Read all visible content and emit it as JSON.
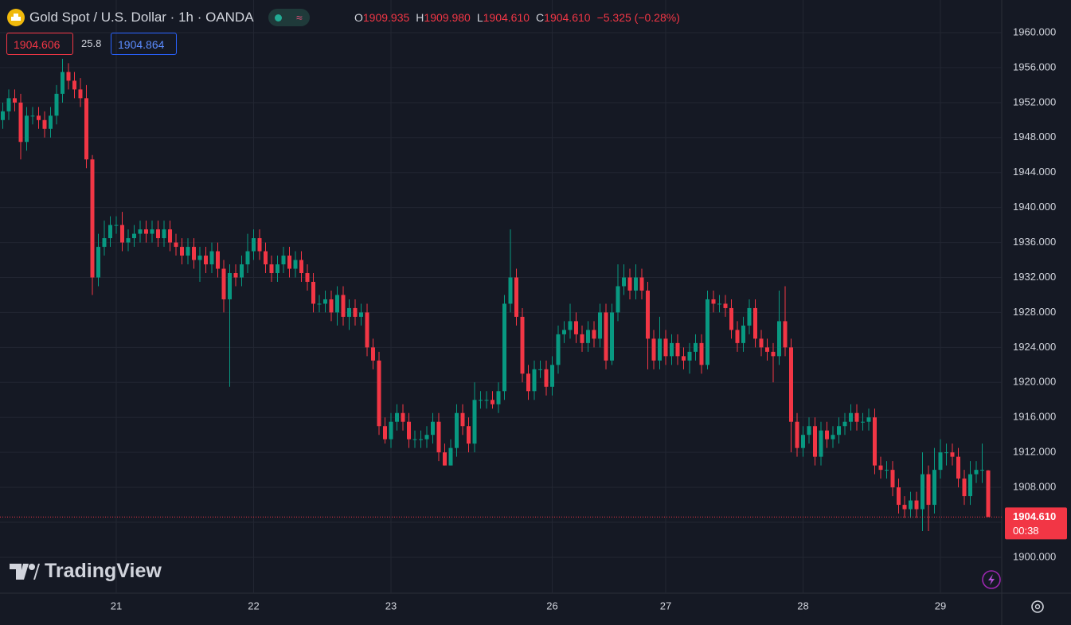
{
  "header": {
    "symbol": "Gold Spot / U.S. Dollar · 1h · OANDA",
    "ohlc": [
      {
        "label": "O",
        "value": "1909.935"
      },
      {
        "label": "H",
        "value": "1909.980"
      },
      {
        "label": "L",
        "value": "1904.610"
      },
      {
        "label": "C",
        "value": "1904.610"
      }
    ],
    "change": "−5.325 (−0.28%)",
    "sell": "1904.606",
    "spread": "25.8",
    "buy": "1904.864",
    "watermark": "TradingView"
  },
  "chart_data": {
    "type": "candlestick",
    "up_color": "#089981",
    "down_color": "#f23645",
    "grid": true,
    "price_tag": {
      "label": "1904.610",
      "countdown": "00:38"
    },
    "ylim": [
      1895.9,
      1963.73
    ],
    "yticks": [
      {
        "value": 1900,
        "label": "1900.000"
      },
      {
        "value": 1904,
        "label": "1904.000"
      },
      {
        "value": 1908,
        "label": "1908.000"
      },
      {
        "value": 1912,
        "label": "1912.000"
      },
      {
        "value": 1916,
        "label": "1916.000"
      },
      {
        "value": 1920,
        "label": "1920.000"
      },
      {
        "value": 1924,
        "label": "1924.000"
      },
      {
        "value": 1928,
        "label": "1928.000"
      },
      {
        "value": 1932,
        "label": "1932.000"
      },
      {
        "value": 1936,
        "label": "1936.000"
      },
      {
        "value": 1940,
        "label": "1940.000"
      },
      {
        "value": 1944,
        "label": "1944.000"
      },
      {
        "value": 1948,
        "label": "1948.000"
      },
      {
        "value": 1952,
        "label": "1952.000"
      },
      {
        "value": 1956,
        "label": "1956.000"
      },
      {
        "value": 1960,
        "label": "1960.000"
      }
    ],
    "categories": [
      null,
      null,
      null,
      null,
      null,
      null,
      null,
      null,
      null,
      null,
      null,
      null,
      null,
      null,
      null,
      null,
      null,
      null,
      null,
      "21",
      null,
      null,
      null,
      null,
      null,
      null,
      null,
      null,
      null,
      null,
      null,
      null,
      null,
      null,
      null,
      null,
      null,
      null,
      null,
      null,
      null,
      null,
      "22",
      null,
      null,
      null,
      null,
      null,
      null,
      null,
      null,
      null,
      null,
      null,
      null,
      null,
      null,
      null,
      null,
      null,
      null,
      null,
      null,
      null,
      null,
      "23",
      null,
      null,
      null,
      null,
      null,
      null,
      null,
      null,
      null,
      null,
      null,
      null,
      null,
      null,
      null,
      null,
      null,
      null,
      null,
      null,
      null,
      null,
      null,
      null,
      null,
      null,
      "26",
      null,
      null,
      null,
      null,
      null,
      null,
      null,
      null,
      null,
      null,
      null,
      null,
      null,
      null,
      null,
      null,
      null,
      null,
      "27",
      null,
      null,
      null,
      null,
      null,
      null,
      null,
      null,
      null,
      null,
      null,
      null,
      null,
      null,
      null,
      null,
      null,
      null,
      null,
      null,
      null,
      null,
      "28",
      null,
      null,
      null,
      null,
      null,
      null,
      null,
      null,
      null,
      null,
      null,
      null,
      null,
      null,
      null,
      null,
      null,
      null,
      null,
      null,
      null,
      null,
      "29",
      null,
      null,
      null,
      null,
      null,
      null,
      null,
      null
    ],
    "open": [
      1950,
      1951,
      1952.5,
      1952,
      1947.5,
      1950.5,
      1950.5,
      1950,
      1949,
      1950.5,
      1953,
      1955.5,
      1954.5,
      1953.5,
      1952.5,
      1945.5,
      1932,
      1935.5,
      1936.5,
      1938,
      1938,
      1936,
      1936.5,
      1937,
      1937.5,
      1937,
      1937.5,
      1936.5,
      1937.5,
      1936,
      1935.5,
      1934.5,
      1935.5,
      1934,
      1934.5,
      1933.5,
      1935,
      1933,
      1929.5,
      1932.5,
      1932,
      1933.5,
      1935,
      1936.5,
      1935,
      1933.5,
      1932.5,
      1933.5,
      1934.5,
      1933,
      1934,
      1932.5,
      1931.5,
      1929,
      1929,
      1929.5,
      1928,
      1930,
      1927.5,
      1928.5,
      1927.5,
      1928,
      1924,
      1922.5,
      1915,
      1913.5,
      1915.5,
      1916.5,
      1915.5,
      1913.5,
      1913.5,
      1913.5,
      1914,
      1915.5,
      1912,
      1910.5,
      1912.5,
      1916.5,
      1915,
      1913,
      1918,
      1918,
      1918,
      1917.5,
      1919,
      1929,
      1932,
      1927.5,
      1921,
      1919,
      1921.5,
      1921.5,
      1919.5,
      1922,
      1925.5,
      1926,
      1927,
      1925.5,
      1924.5,
      1926,
      1925,
      1928,
      1922.5,
      1928,
      1931,
      1932,
      1930.5,
      1932,
      1930.5,
      1925,
      1922.5,
      1925,
      1923,
      1924.5,
      1923,
      1922.5,
      1923.5,
      1924.5,
      1922,
      1929.5,
      1929,
      1929,
      1928.5,
      1926,
      1924.5,
      1926.5,
      1928.5,
      1925,
      1924,
      1923.5,
      1923,
      1927,
      1924,
      1915.5,
      1912.5,
      1914,
      1915,
      1911.5,
      1914.5,
      1913.5,
      1914,
      1915,
      1915.5,
      1916.5,
      1915.5,
      1915.5,
      1916,
      1910.5,
      1910,
      1910,
      1908,
      1906,
      1905.5,
      1906.5,
      1905.5,
      1909.5,
      1906,
      1910,
      1912,
      1912,
      1911.5,
      1909,
      1907,
      1909.5,
      1910,
      1909.935
    ],
    "high": [
      1952,
      1953.5,
      1953.5,
      1953,
      1951.5,
      1951.5,
      1951.5,
      1951,
      1951.5,
      1954,
      1957,
      1956.5,
      1955.5,
      1954.8,
      1954,
      1946,
      1937,
      1938.5,
      1939,
      1939,
      1939.5,
      1937.5,
      1938,
      1938.5,
      1938.5,
      1938.5,
      1938.5,
      1938.5,
      1938.5,
      1937,
      1936.5,
      1936.5,
      1936.5,
      1935.5,
      1935.5,
      1936,
      1936,
      1934,
      1933.5,
      1933.5,
      1934.5,
      1937,
      1937.5,
      1937.5,
      1936,
      1934.5,
      1934.5,
      1935.5,
      1935.5,
      1935,
      1935,
      1933.5,
      1932.5,
      1930,
      1930.5,
      1930.5,
      1931,
      1931,
      1929.5,
      1929.5,
      1929,
      1929,
      1925,
      1923.5,
      1916,
      1916.5,
      1917.5,
      1917.5,
      1916.5,
      1914.5,
      1914.5,
      1915,
      1916.5,
      1916.5,
      1913,
      1913.5,
      1917.5,
      1917.5,
      1916,
      1920,
      1919,
      1919,
      1919,
      1920,
      1930,
      1937.5,
      1933,
      1928.5,
      1922,
      1922.5,
      1922.5,
      1922.5,
      1923,
      1926.5,
      1927,
      1929,
      1928,
      1926.5,
      1927,
      1927,
      1929,
      1929,
      1929,
      1933.5,
      1933.5,
      1933,
      1933.5,
      1933,
      1931.5,
      1926,
      1927.5,
      1926,
      1925.5,
      1925.5,
      1924,
      1924.5,
      1925.5,
      1925.5,
      1930.5,
      1930.5,
      1930,
      1930,
      1929.5,
      1927,
      1927.5,
      1929.5,
      1929.5,
      1926,
      1925,
      1924.5,
      1930.5,
      1931,
      1925,
      1916.5,
      1915,
      1916,
      1916,
      1915.5,
      1915.5,
      1915,
      1916,
      1916.5,
      1917.5,
      1917.5,
      1916.5,
      1917,
      1917,
      1911.5,
      1911,
      1911,
      1909,
      1907,
      1907.5,
      1907.5,
      1912,
      1910.5,
      1912.5,
      1913.5,
      1913,
      1913,
      1912.5,
      1910,
      1911,
      1911,
      1913,
      1909.98
    ],
    "low": [
      1949,
      1950,
      1951,
      1945.5,
      1946.5,
      1949.5,
      1949,
      1948,
      1948,
      1949.5,
      1952,
      1953.5,
      1952.5,
      1951.5,
      1944.5,
      1930,
      1931,
      1934.5,
      1935.5,
      1937,
      1935,
      1935,
      1935.5,
      1936,
      1936,
      1936,
      1935.5,
      1935.5,
      1935,
      1934.5,
      1933.5,
      1933.5,
      1933,
      1931.5,
      1932.5,
      1932.5,
      1932,
      1928,
      1919.5,
      1931,
      1931,
      1932.5,
      1934,
      1934,
      1932.5,
      1931.5,
      1931.5,
      1932.5,
      1932,
      1932,
      1931.5,
      1930.5,
      1928,
      1928,
      1928,
      1927,
      1926.5,
      1926.5,
      1926,
      1926.5,
      1926.5,
      1923,
      1921.5,
      1914,
      1913,
      1912.5,
      1914.5,
      1914.5,
      1912.5,
      1912.5,
      1912.5,
      1912.5,
      1913,
      1911,
      1910.5,
      1910.5,
      1911.5,
      1914,
      1912,
      1912,
      1917,
      1917,
      1917,
      1916.5,
      1918,
      1928,
      1926.5,
      1920,
      1918,
      1918,
      1920.5,
      1918.5,
      1918.5,
      1921,
      1924.5,
      1925,
      1924.5,
      1923.5,
      1923.5,
      1924,
      1924,
      1921.5,
      1922,
      1927,
      1930,
      1929.5,
      1929.5,
      1929.5,
      1921.5,
      1921.5,
      1921.5,
      1922,
      1922,
      1922,
      1921.5,
      1921,
      1922.5,
      1921,
      1921.5,
      1928,
      1928,
      1927.5,
      1925,
      1923.5,
      1923.5,
      1925.5,
      1924,
      1923,
      1922.5,
      1920,
      1922,
      1923,
      1912,
      1911.5,
      1911.5,
      1913,
      1910.5,
      1910.5,
      1912.5,
      1912.5,
      1913,
      1914,
      1914.5,
      1914.5,
      1914.5,
      1914.5,
      1909.5,
      1909,
      1909,
      1907,
      1905,
      1904.5,
      1904.5,
      1904.5,
      1903,
      1903,
      1905,
      1909,
      1910.5,
      1910.5,
      1908,
      1906,
      1906,
      1908.5,
      1908.5,
      1904.61
    ],
    "close": [
      1951,
      1952.5,
      1952,
      1947.5,
      1950.5,
      1950.5,
      1950,
      1949,
      1950.5,
      1953,
      1955.5,
      1954.5,
      1953.5,
      1952.5,
      1945.5,
      1932,
      1935.5,
      1936.5,
      1938,
      1938,
      1936,
      1936.5,
      1937,
      1937.5,
      1937,
      1937.5,
      1936.5,
      1937.5,
      1936,
      1935.5,
      1934.5,
      1935.5,
      1934,
      1934.5,
      1933.5,
      1935,
      1933,
      1929.5,
      1932.5,
      1932,
      1933.5,
      1935,
      1936.5,
      1935,
      1933.5,
      1932.5,
      1933.5,
      1934.5,
      1933,
      1934,
      1932.5,
      1931.5,
      1929,
      1929,
      1929.5,
      1928,
      1930,
      1927.5,
      1928.5,
      1927.5,
      1928,
      1924,
      1922.5,
      1915,
      1913.5,
      1915.5,
      1916.5,
      1915.5,
      1913.5,
      1913.5,
      1913.5,
      1914,
      1915.5,
      1912,
      1910.5,
      1912.5,
      1916.5,
      1915,
      1913,
      1918,
      1918,
      1918,
      1917.5,
      1919,
      1929,
      1932,
      1927.5,
      1921,
      1919,
      1921.5,
      1921.5,
      1919.5,
      1922,
      1925.5,
      1926,
      1927,
      1925.5,
      1924.5,
      1926,
      1925,
      1928,
      1922.5,
      1928,
      1931,
      1932,
      1930.5,
      1932,
      1930.5,
      1925,
      1922.5,
      1925,
      1923,
      1924.5,
      1923,
      1922.5,
      1923.5,
      1924.5,
      1922,
      1929.5,
      1929,
      1929,
      1928.5,
      1926,
      1924.5,
      1926.5,
      1928.5,
      1925,
      1924,
      1923.5,
      1923,
      1927,
      1924,
      1915.5,
      1912.5,
      1914,
      1915,
      1911.5,
      1914.5,
      1913.5,
      1914,
      1915,
      1915.5,
      1916.5,
      1915.5,
      1915.5,
      1916,
      1910.5,
      1910,
      1910,
      1908,
      1906,
      1905.5,
      1906.5,
      1905.5,
      1909.5,
      1906,
      1910,
      1912,
      1912,
      1911.5,
      1909,
      1907,
      1909.5,
      1910,
      1910,
      1904.61
    ]
  }
}
